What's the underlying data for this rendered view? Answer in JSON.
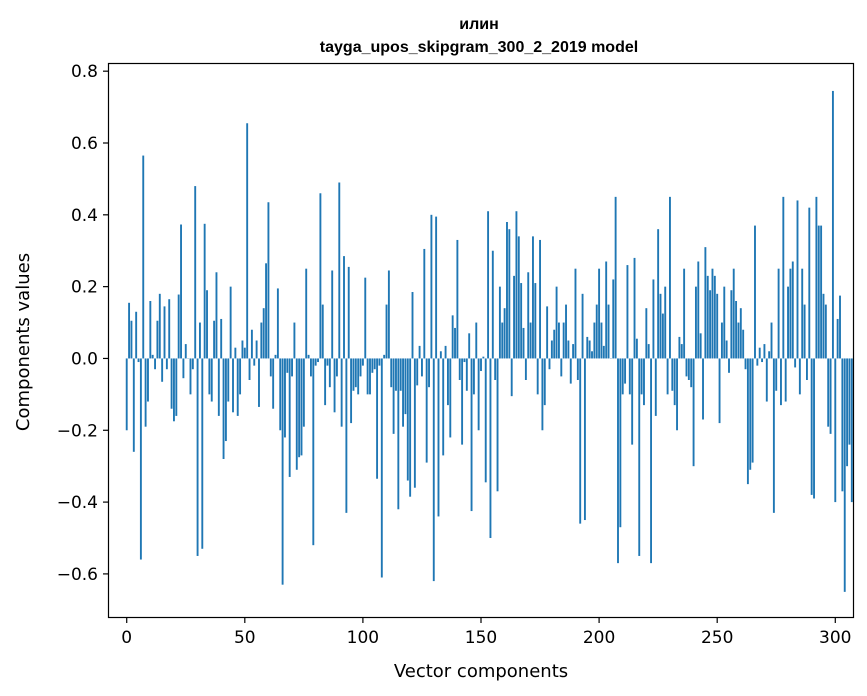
{
  "chart_data": {
    "type": "bar",
    "title": "илин",
    "subtitle": "tayga_upos_skipgram_300_2_2019 model",
    "xlabel": "Vector components",
    "ylabel": "Components values",
    "xlim": [
      -7.5,
      307.5
    ],
    "ylim": [
      -0.72,
      0.82
    ],
    "xticks": [
      0,
      50,
      100,
      150,
      200,
      250,
      300
    ],
    "xtick_labels": [
      "0",
      "50",
      "100",
      "150",
      "200",
      "250",
      "300"
    ],
    "yticks": [
      -0.6,
      -0.4,
      -0.2,
      0.0,
      0.2,
      0.4,
      0.6,
      0.8
    ],
    "ytick_labels": [
      "−0.6",
      "−0.4",
      "−0.2",
      "0.0",
      "0.2",
      "0.4",
      "0.6",
      "0.8"
    ],
    "grid": false,
    "bar_color": "#1f77b4",
    "values": [
      -0.2,
      0.155,
      0.105,
      -0.26,
      0.13,
      -0.01,
      -0.56,
      0.565,
      -0.19,
      -0.12,
      0.16,
      0.01,
      -0.03,
      0.105,
      0.18,
      -0.065,
      0.145,
      -0.03,
      0.165,
      -0.14,
      -0.175,
      -0.16,
      0.178,
      0.373,
      -0.055,
      0.04,
      0.0,
      -0.1,
      -0.03,
      0.48,
      -0.55,
      0.1,
      -0.53,
      0.375,
      0.19,
      -0.1,
      -0.12,
      0.105,
      0.24,
      -0.16,
      0.11,
      -0.28,
      -0.23,
      -0.12,
      0.2,
      -0.15,
      0.03,
      -0.16,
      -0.1,
      0.05,
      0.03,
      0.655,
      -0.06,
      0.08,
      -0.02,
      0.05,
      -0.135,
      0.1,
      0.14,
      0.265,
      0.435,
      -0.05,
      -0.14,
      0.01,
      0.195,
      -0.2,
      -0.63,
      -0.22,
      -0.04,
      -0.33,
      -0.05,
      0.1,
      -0.31,
      -0.275,
      -0.27,
      -0.19,
      0.25,
      0.01,
      -0.05,
      -0.52,
      -0.02,
      -0.01,
      0.46,
      0.15,
      -0.13,
      -0.02,
      -0.08,
      0.245,
      -0.15,
      -0.05,
      0.49,
      -0.19,
      0.285,
      -0.43,
      0.255,
      -0.18,
      -0.09,
      -0.08,
      -0.1,
      -0.05,
      -0.02,
      0.225,
      -0.1,
      -0.1,
      -0.04,
      -0.03,
      -0.335,
      -0.02,
      -0.61,
      0.01,
      0.15,
      0.245,
      -0.08,
      -0.21,
      -0.09,
      -0.42,
      -0.09,
      -0.19,
      -0.155,
      -0.34,
      -0.385,
      0.185,
      -0.36,
      -0.075,
      0.035,
      -0.05,
      0.305,
      -0.29,
      -0.08,
      0.4,
      -0.62,
      0.395,
      -0.44,
      0.02,
      -0.27,
      0.035,
      -0.13,
      -0.22,
      0.12,
      0.085,
      0.33,
      -0.06,
      -0.24,
      -0.01,
      -0.09,
      0.07,
      -0.425,
      -0.1,
      0.1,
      -0.2,
      -0.035,
      0.005,
      -0.345,
      0.41,
      -0.5,
      0.3,
      -0.06,
      -0.37,
      0.2,
      0.1,
      0.14,
      0.38,
      0.36,
      -0.105,
      0.23,
      0.41,
      0.34,
      0.21,
      0.085,
      -0.06,
      0.24,
      0.1,
      0.34,
      0.21,
      -0.1,
      0.33,
      -0.2,
      -0.13,
      0.145,
      -0.03,
      0.05,
      0.08,
      0.2,
      0.1,
      -0.05,
      0.1,
      0.15,
      0.05,
      -0.07,
      0.04,
      0.25,
      -0.06,
      -0.46,
      0.18,
      -0.45,
      0.06,
      0.05,
      0.02,
      0.1,
      0.15,
      0.25,
      0.1,
      0.035,
      0.27,
      0.15,
      0.0,
      0.22,
      0.45,
      -0.57,
      -0.47,
      -0.1,
      -0.07,
      0.26,
      -0.1,
      -0.24,
      0.28,
      0.055,
      -0.55,
      -0.1,
      -0.13,
      0.14,
      0.04,
      -0.57,
      0.22,
      -0.16,
      0.36,
      0.18,
      0.125,
      0.2,
      -0.1,
      0.45,
      -0.09,
      -0.13,
      -0.2,
      0.06,
      0.04,
      0.25,
      -0.05,
      -0.06,
      -0.08,
      -0.3,
      0.2,
      0.27,
      0.07,
      -0.17,
      0.31,
      0.23,
      0.19,
      0.25,
      0.23,
      0.18,
      -0.18,
      0.1,
      0.2,
      0.05,
      -0.04,
      0.19,
      0.25,
      0.16,
      0.1,
      0.14,
      0.08,
      -0.03,
      -0.35,
      -0.31,
      -0.29,
      0.37,
      -0.02,
      0.03,
      -0.01,
      0.04,
      -0.12,
      0.02,
      0.1,
      -0.43,
      -0.09,
      0.25,
      -0.13,
      0.45,
      -0.12,
      0.2,
      0.25,
      0.27,
      -0.025,
      0.44,
      -0.1,
      0.25,
      0.15,
      -0.06,
      0.42,
      -0.38,
      -0.39,
      0.45,
      0.37,
      0.37,
      0.18,
      0.15,
      -0.19,
      -0.21,
      0.745,
      -0.4,
      0.11,
      0.175,
      -0.37,
      -0.65,
      -0.3,
      -0.24,
      -0.4
    ]
  }
}
